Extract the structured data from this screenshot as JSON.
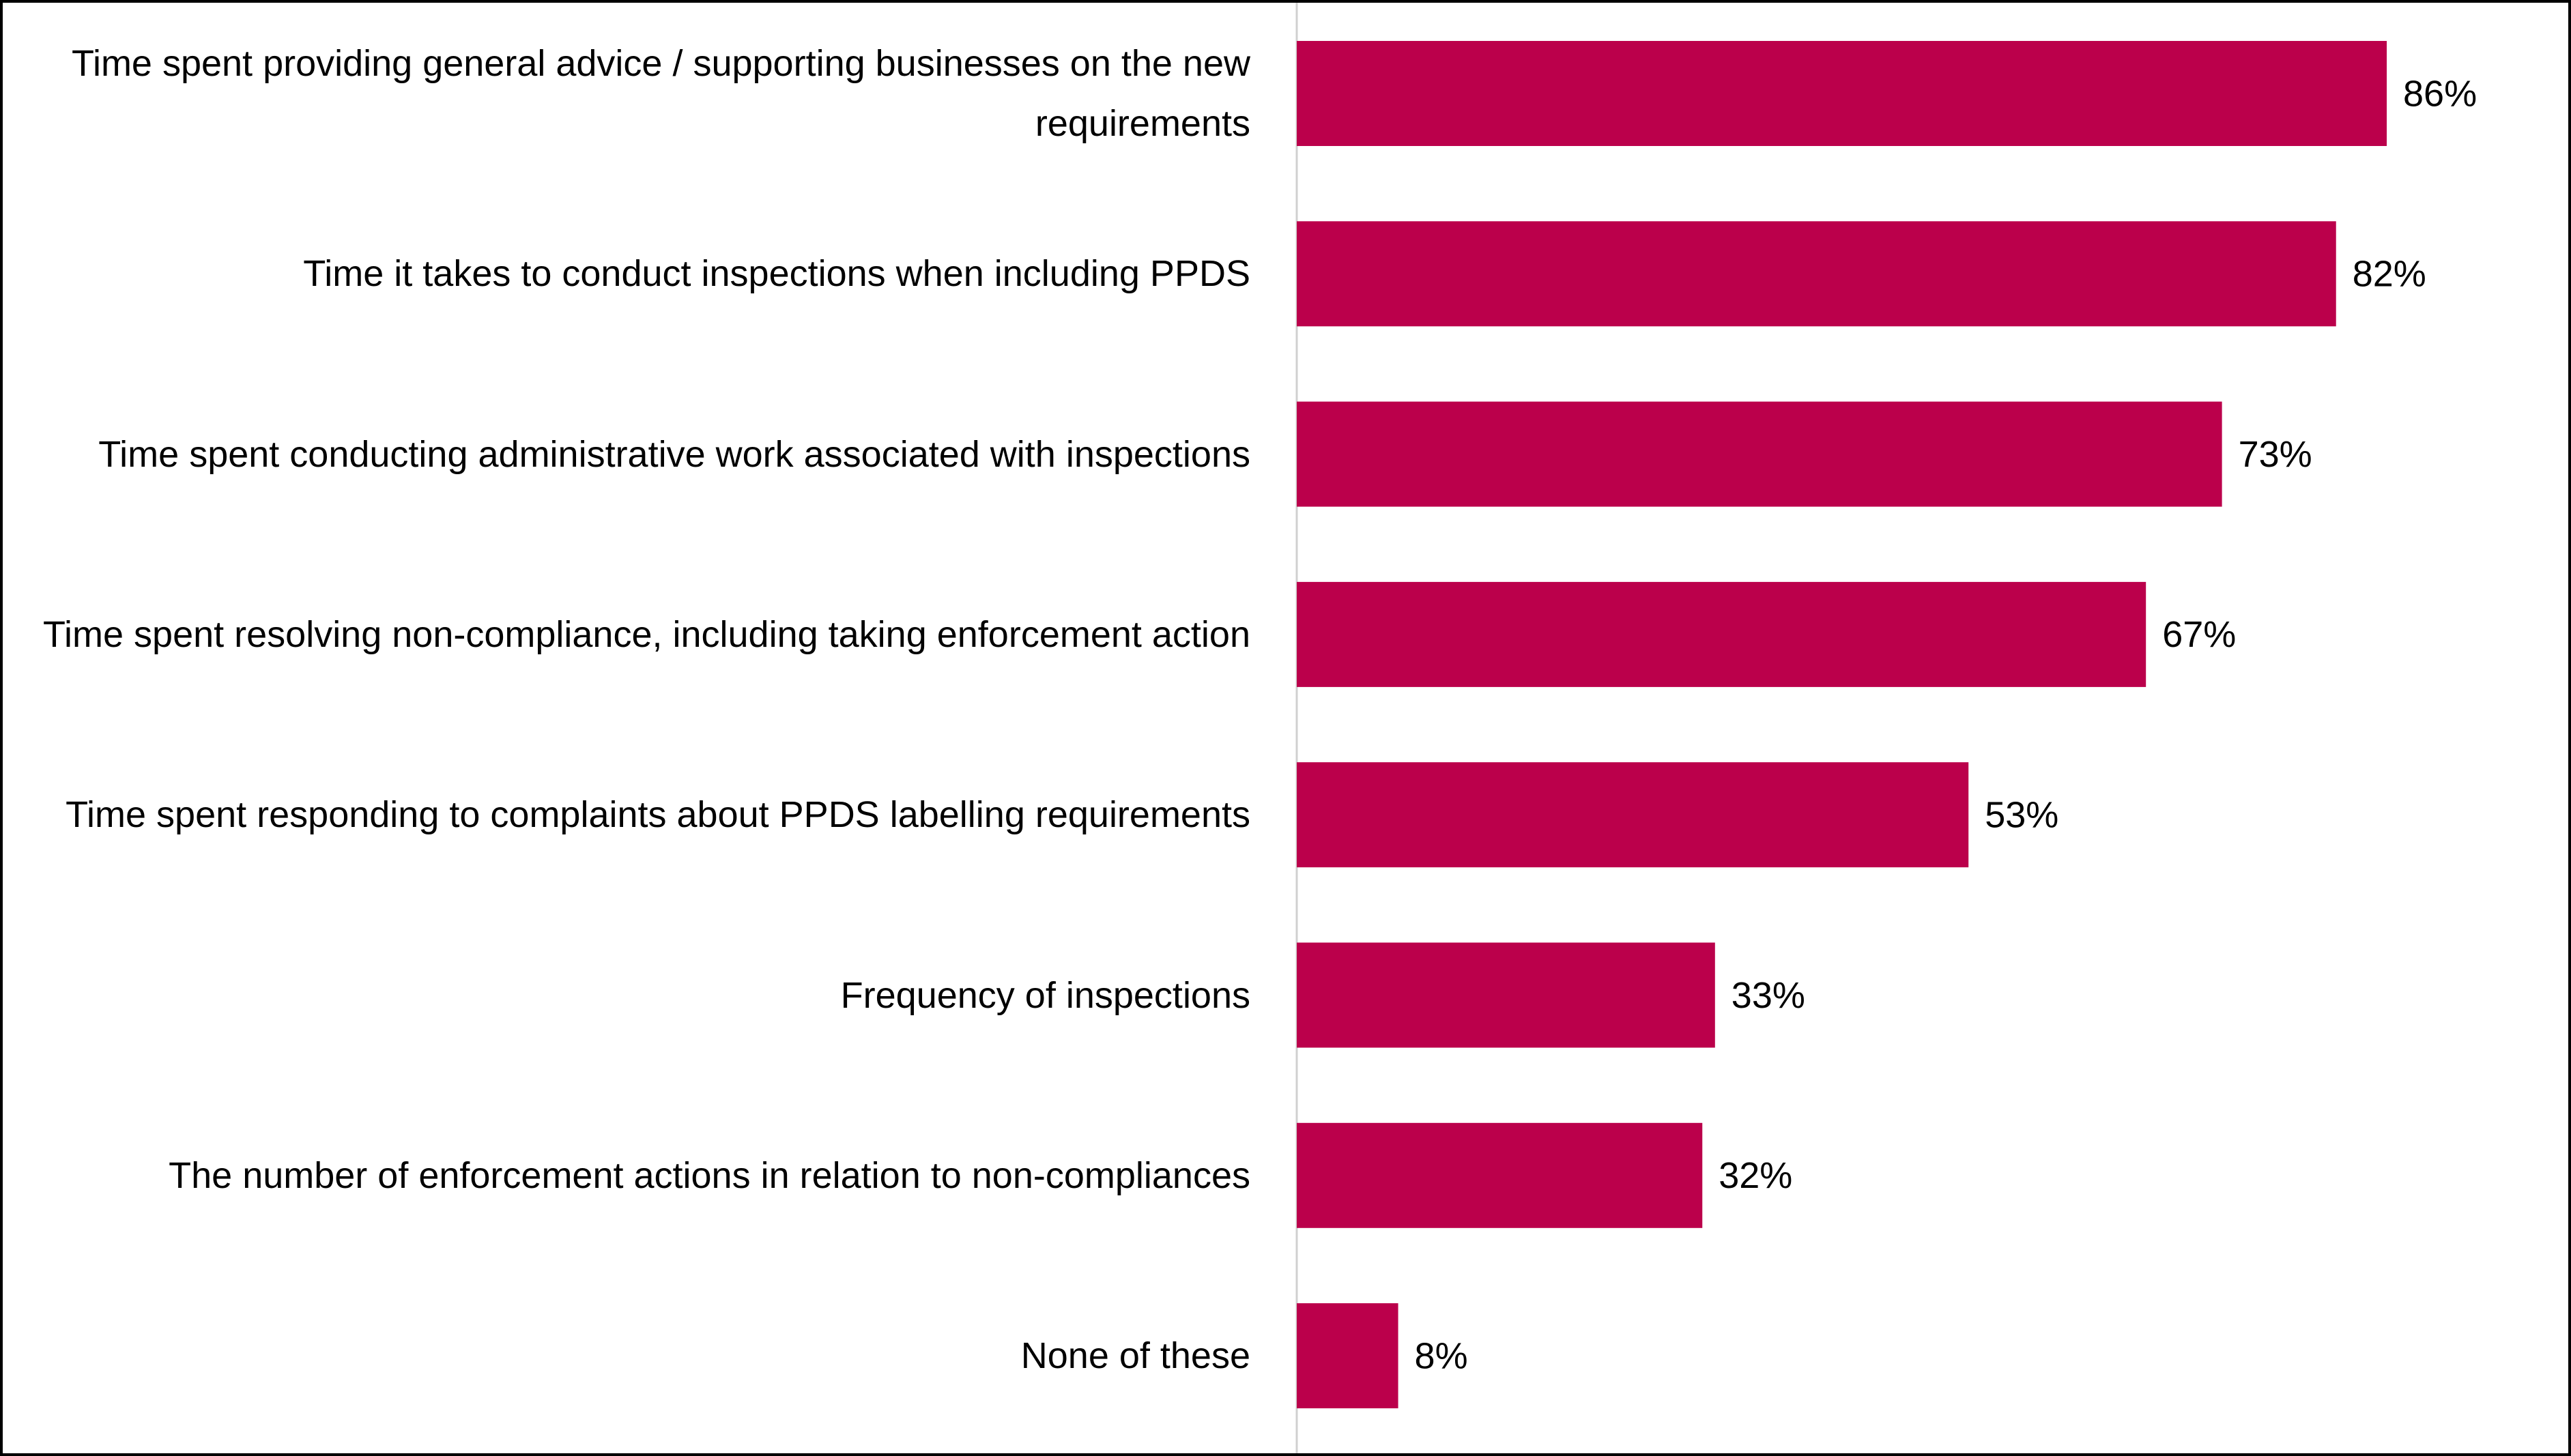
{
  "chart_data": {
    "type": "bar",
    "orientation": "horizontal",
    "categories": [
      "Time spent providing general advice / supporting businesses on the new requirements",
      "Time it takes to conduct inspections when including PPDS",
      "Time spent conducting administrative work associated with inspections",
      "Time spent resolving non-compliance, including taking enforcement action",
      "Time spent responding to complaints about PPDS labelling requirements",
      "Frequency of inspections",
      "The number of enforcement actions in relation to non-compliances",
      "None of these"
    ],
    "values": [
      86,
      82,
      73,
      67,
      53,
      33,
      32,
      8
    ],
    "value_labels": [
      "86%",
      "82%",
      "73%",
      "67%",
      "53%",
      "33%",
      "32%",
      "8%"
    ],
    "color": "#bb004b",
    "xlim": [
      0,
      100
    ]
  }
}
